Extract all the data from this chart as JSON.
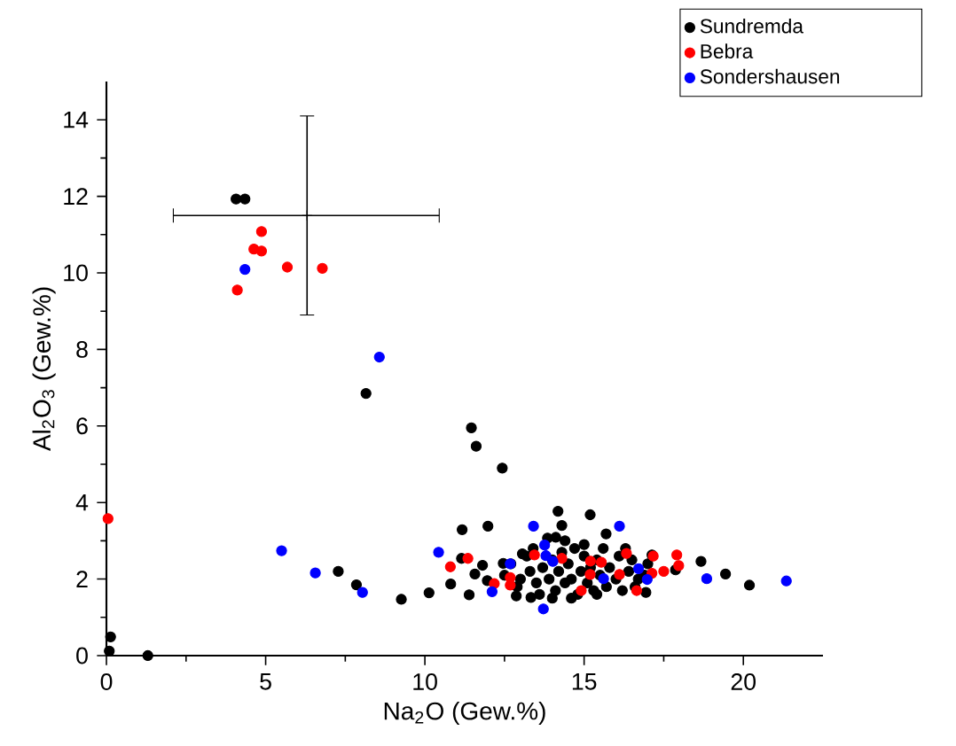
{
  "chart_data": {
    "type": "scatter",
    "xlabel": "Na$_{2}$O (Gew.%)",
    "ylabel": "Al$_{2}$O$_{3}$ (Gew.%)",
    "xlim": [
      0,
      22.5
    ],
    "ylim": [
      0,
      15
    ],
    "xticks": [
      0,
      5,
      10,
      15,
      20
    ],
    "yticks": [
      0,
      2,
      4,
      6,
      8,
      10,
      12,
      14
    ],
    "marker": "circle",
    "legend": "top right",
    "grid": false,
    "series": [
      {
        "name": "Sundremda",
        "color": "#000000",
        "x": [
          4.07,
          4.35,
          8.15,
          0.13,
          0.09,
          1.3,
          7.28,
          7.85,
          9.26,
          11.46,
          11.61,
          12.43,
          14.18,
          15.19,
          14.3,
          11.98,
          11.17,
          15.69,
          13.85,
          14.11,
          10.13,
          10.81,
          11.39,
          11.15,
          11.81,
          11.57,
          11.96,
          12.46,
          13.06,
          12.87,
          13.33,
          18.67,
          19.44,
          20.19,
          17.87,
          17.13,
          16.94,
          13.0,
          13.3,
          13.5,
          13.7,
          13.9,
          14.0,
          14.1,
          14.2,
          14.3,
          14.4,
          14.5,
          14.6,
          14.7,
          14.8,
          14.9,
          15.0,
          15.1,
          15.2,
          15.3,
          15.4,
          15.5,
          15.6,
          15.7,
          15.8,
          16.0,
          16.1,
          16.2,
          16.4,
          16.5,
          16.7,
          12.7,
          12.9,
          13.2,
          13.6,
          14.0,
          14.6,
          15.4,
          16.6,
          15.0,
          14.4,
          16.3,
          13.4,
          12.5,
          17.0,
          16.9
        ],
        "values": [
          11.93,
          11.93,
          6.85,
          0.49,
          0.12,
          0.0,
          2.2,
          1.85,
          1.47,
          5.95,
          5.47,
          4.9,
          3.77,
          3.68,
          3.4,
          3.38,
          3.29,
          3.18,
          3.07,
          3.09,
          1.64,
          1.87,
          1.59,
          2.54,
          2.36,
          2.13,
          1.96,
          2.41,
          2.66,
          1.56,
          1.52,
          2.46,
          2.13,
          1.84,
          2.24,
          2.63,
          1.65,
          2.0,
          2.2,
          1.9,
          2.3,
          2.0,
          2.5,
          1.7,
          2.2,
          2.7,
          1.9,
          2.4,
          2.0,
          2.8,
          1.6,
          2.2,
          2.6,
          1.9,
          2.3,
          1.7,
          2.5,
          2.1,
          2.8,
          1.8,
          2.3,
          2.0,
          2.6,
          1.7,
          2.2,
          2.5,
          2.0,
          2.4,
          1.8,
          2.6,
          1.6,
          1.5,
          1.5,
          1.6,
          1.8,
          2.9,
          3.0,
          2.8,
          2.8,
          2.1,
          2.4,
          2.1
        ]
      },
      {
        "name": "Bebra",
        "color": "#ff0000",
        "x": [
          4.87,
          4.63,
          4.87,
          5.68,
          6.78,
          4.11,
          0.05,
          10.8,
          11.35,
          12.18,
          12.68,
          12.68,
          13.44,
          14.3,
          14.91,
          15.2,
          15.54,
          15.19,
          16.11,
          16.33,
          16.65,
          17.17,
          17.13,
          17.5,
          17.91,
          17.97
        ],
        "values": [
          11.08,
          10.62,
          10.57,
          10.15,
          10.12,
          9.55,
          3.58,
          2.32,
          2.54,
          1.88,
          2.04,
          1.84,
          2.63,
          2.54,
          1.7,
          2.47,
          2.44,
          2.12,
          2.12,
          2.67,
          1.7,
          2.6,
          2.15,
          2.2,
          2.63,
          2.35
        ]
      },
      {
        "name": "Sondershausen",
        "color": "#0000ff",
        "x": [
          4.35,
          8.57,
          5.5,
          6.56,
          8.04,
          10.43,
          13.41,
          16.11,
          13.76,
          13.8,
          14.02,
          12.68,
          12.11,
          13.72,
          15.61,
          16.71,
          16.98,
          18.85,
          21.35
        ],
        "values": [
          10.09,
          7.8,
          2.74,
          2.16,
          1.65,
          2.7,
          3.38,
          3.38,
          2.89,
          2.61,
          2.46,
          2.4,
          1.67,
          1.22,
          2.01,
          2.27,
          1.99,
          2.01,
          1.95
        ]
      },
      {
        "color": "#000000",
        "marker": "cross",
        "x": [
          6.3
        ],
        "values": [
          11.5
        ],
        "errors": [
          [
            8.9,
            14.1
          ]
        ],
        "xerrors": [
          [
            2.1,
            10.45
          ]
        ]
      }
    ]
  }
}
